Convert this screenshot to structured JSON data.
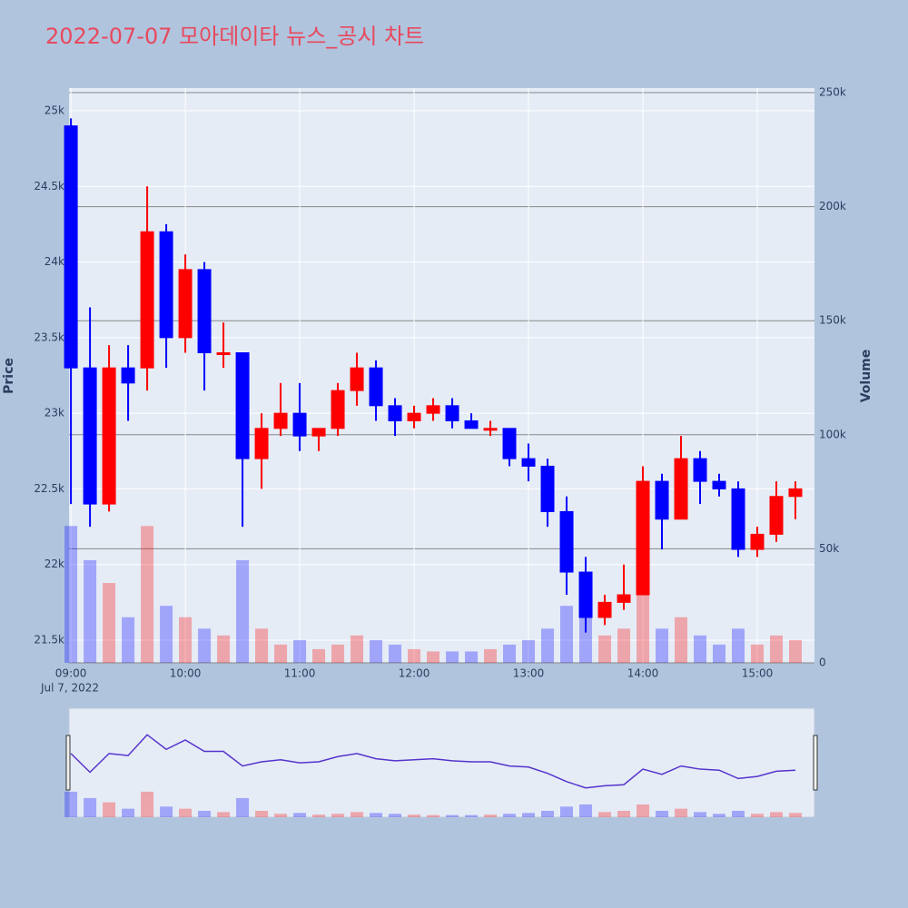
{
  "chart_data": {
    "type": "candlestick",
    "title": "2022-07-07 모아데이타 뉴스_공시 차트",
    "y_title": "Price",
    "y2_title": "Volume",
    "x_date_label": "Jul 7, 2022",
    "increasing_color": "#ff0000",
    "decreasing_color": "#0000ff",
    "xlim": [
      "2022-07-07 08:59",
      "2022-07-07 15:30"
    ],
    "xticks": [
      {
        "value": "2022-07-07 09:00",
        "label": "09:00"
      },
      {
        "value": "2022-07-07 10:00",
        "label": "10:00"
      },
      {
        "value": "2022-07-07 11:00",
        "label": "11:00"
      },
      {
        "value": "2022-07-07 12:00",
        "label": "12:00"
      },
      {
        "value": "2022-07-07 13:00",
        "label": "13:00"
      },
      {
        "value": "2022-07-07 14:00",
        "label": "14:00"
      },
      {
        "value": "2022-07-07 15:00",
        "label": "15:00"
      }
    ],
    "ylim": [
      21350,
      25150
    ],
    "yticks": [
      {
        "value": 21500,
        "label": "21.5k"
      },
      {
        "value": 22000,
        "label": "22k"
      },
      {
        "value": 22500,
        "label": "22.5k"
      },
      {
        "value": 23000,
        "label": "23k"
      },
      {
        "value": 23500,
        "label": "23.5k"
      },
      {
        "value": 24000,
        "label": "24k"
      },
      {
        "value": 24500,
        "label": "24.5k"
      },
      {
        "value": 25000,
        "label": "25k"
      }
    ],
    "y2lim": [
      0,
      252000
    ],
    "y2ticks": [
      0,
      {
        "value": 50000,
        "label": "50k"
      },
      {
        "value": 100000,
        "label": "100k"
      },
      {
        "value": 150000,
        "label": "150k"
      },
      {
        "value": 200000,
        "label": "200k"
      },
      {
        "value": 250000,
        "label": "250k"
      }
    ],
    "x": [
      "2022-07-07 09:00",
      "2022-07-07 09:10",
      "2022-07-07 09:20",
      "2022-07-07 09:30",
      "2022-07-07 09:40",
      "2022-07-07 09:50",
      "2022-07-07 10:00",
      "2022-07-07 10:10",
      "2022-07-07 10:20",
      "2022-07-07 10:30",
      "2022-07-07 10:40",
      "2022-07-07 10:50",
      "2022-07-07 11:00",
      "2022-07-07 11:10",
      "2022-07-07 11:20",
      "2022-07-07 11:30",
      "2022-07-07 11:40",
      "2022-07-07 11:50",
      "2022-07-07 12:00",
      "2022-07-07 12:10",
      "2022-07-07 12:20",
      "2022-07-07 12:30",
      "2022-07-07 12:40",
      "2022-07-07 12:50",
      "2022-07-07 13:00",
      "2022-07-07 13:10",
      "2022-07-07 13:20",
      "2022-07-07 13:30",
      "2022-07-07 13:40",
      "2022-07-07 13:50",
      "2022-07-07 14:00",
      "2022-07-07 14:10",
      "2022-07-07 14:20",
      "2022-07-07 14:30",
      "2022-07-07 14:40",
      "2022-07-07 14:50",
      "2022-07-07 15:00",
      "2022-07-07 15:10",
      "2022-07-07 15:20"
    ],
    "open": [
      24900,
      23300,
      22400,
      23300,
      23300,
      24200,
      23500,
      23950,
      23400,
      23400,
      22700,
      22900,
      23000,
      22850,
      22900,
      23150,
      23300,
      23050,
      22950,
      23000,
      23050,
      22950,
      22900,
      22900,
      22700,
      22650,
      22350,
      21950,
      21650,
      21750,
      21800,
      22550,
      22300,
      22700,
      22550,
      22500,
      22100,
      22200,
      22450
    ],
    "high": [
      24950,
      23700,
      23450,
      23450,
      24500,
      24250,
      24050,
      24000,
      23600,
      23400,
      23000,
      23200,
      23200,
      22900,
      23200,
      23400,
      23350,
      23100,
      23050,
      23100,
      23100,
      23000,
      22950,
      22900,
      22800,
      22700,
      22450,
      22050,
      21800,
      22000,
      22650,
      22600,
      22850,
      22750,
      22600,
      22550,
      22250,
      22550,
      22550
    ],
    "low": [
      22400,
      22250,
      22350,
      22950,
      23150,
      23300,
      23400,
      23150,
      23300,
      22250,
      22500,
      22850,
      22750,
      22750,
      22850,
      23050,
      22950,
      22850,
      22900,
      22950,
      22900,
      22900,
      22850,
      22650,
      22550,
      22250,
      21800,
      21550,
      21600,
      21700,
      21800,
      22100,
      22300,
      22400,
      22450,
      22050,
      22050,
      22150,
      22300
    ],
    "close": [
      23300,
      22400,
      23300,
      23200,
      24200,
      23500,
      23950,
      23400,
      23400,
      22700,
      22900,
      23000,
      22850,
      22900,
      23150,
      23300,
      23050,
      22950,
      23000,
      23050,
      22950,
      22900,
      22900,
      22700,
      22650,
      22350,
      21950,
      21650,
      21750,
      21800,
      22550,
      22300,
      22700,
      22550,
      22500,
      22100,
      22200,
      22450,
      22500
    ],
    "volume": [
      60000,
      45000,
      35000,
      20000,
      60000,
      25000,
      20000,
      15000,
      12000,
      45000,
      15000,
      8000,
      10000,
      6000,
      8000,
      12000,
      10000,
      8000,
      6000,
      5000,
      5000,
      5000,
      6000,
      8000,
      10000,
      15000,
      25000,
      30000,
      12000,
      15000,
      30000,
      15000,
      20000,
      12000,
      8000,
      15000,
      8000,
      12000,
      10000
    ]
  }
}
